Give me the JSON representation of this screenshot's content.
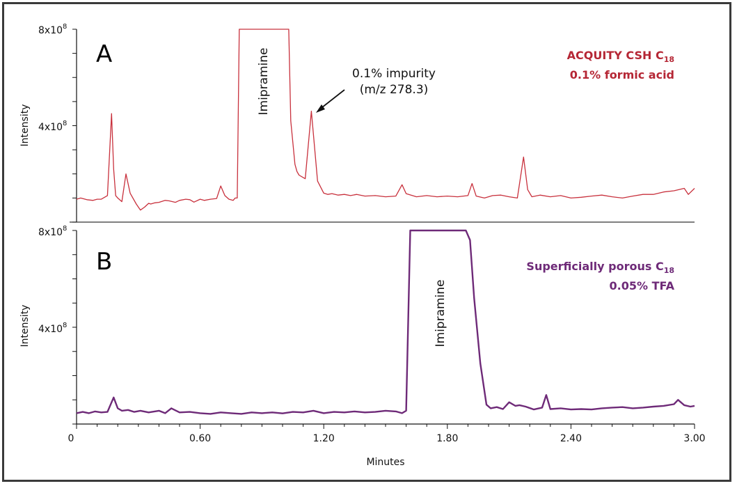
{
  "chart_data": [
    {
      "type": "line",
      "panel": "A",
      "title": "ACQUITY CSH C18, 0.1% formic acid",
      "legend": [
        "ACQUITY CSH C18",
        "0.1% formic acid"
      ],
      "xlabel": "Minutes",
      "ylabel": "Intensity",
      "xlim": [
        0,
        3.0
      ],
      "ylim": [
        0,
        800000000
      ],
      "y_ticks": [
        "4x10^8",
        "8x10^8"
      ],
      "annotations": [
        {
          "text": "Imipramine",
          "x": 0.9,
          "orientation": "vertical"
        },
        {
          "text": "0.1% impurity (m/z 278.3)",
          "x": 1.17,
          "y": 460000000,
          "arrow": true
        }
      ],
      "color": "#c8303c",
      "x": [
        0.0,
        0.02,
        0.05,
        0.08,
        0.1,
        0.12,
        0.15,
        0.17,
        0.18,
        0.19,
        0.2,
        0.22,
        0.24,
        0.26,
        0.29,
        0.31,
        0.33,
        0.35,
        0.36,
        0.38,
        0.4,
        0.43,
        0.45,
        0.48,
        0.5,
        0.53,
        0.55,
        0.57,
        0.6,
        0.62,
        0.65,
        0.68,
        0.7,
        0.72,
        0.74,
        0.76,
        0.77,
        0.78,
        0.79,
        0.79,
        1.03,
        1.04,
        1.06,
        1.07,
        1.08,
        1.11,
        1.14,
        1.17,
        1.2,
        1.22,
        1.24,
        1.27,
        1.3,
        1.33,
        1.36,
        1.4,
        1.45,
        1.5,
        1.55,
        1.58,
        1.6,
        1.65,
        1.7,
        1.75,
        1.8,
        1.85,
        1.9,
        1.92,
        1.94,
        1.98,
        2.02,
        2.06,
        2.1,
        2.14,
        2.17,
        2.19,
        2.21,
        2.25,
        2.3,
        2.35,
        2.4,
        2.45,
        2.5,
        2.55,
        2.6,
        2.65,
        2.7,
        2.75,
        2.8,
        2.85,
        2.9,
        2.95,
        2.97,
        3.0
      ],
      "values": [
        95000000,
        100000000,
        93000000,
        90000000,
        95000000,
        95000000,
        110000000,
        450000000,
        220000000,
        110000000,
        100000000,
        85000000,
        200000000,
        120000000,
        75000000,
        50000000,
        62000000,
        78000000,
        75000000,
        80000000,
        82000000,
        90000000,
        88000000,
        82000000,
        90000000,
        95000000,
        93000000,
        83000000,
        95000000,
        90000000,
        95000000,
        98000000,
        150000000,
        110000000,
        95000000,
        90000000,
        100000000,
        100000000,
        800000000,
        800000000,
        800000000,
        420000000,
        240000000,
        210000000,
        195000000,
        180000000,
        460000000,
        170000000,
        120000000,
        115000000,
        118000000,
        112000000,
        115000000,
        110000000,
        115000000,
        108000000,
        110000000,
        105000000,
        108000000,
        155000000,
        118000000,
        105000000,
        110000000,
        105000000,
        108000000,
        105000000,
        110000000,
        160000000,
        108000000,
        100000000,
        110000000,
        112000000,
        105000000,
        100000000,
        270000000,
        135000000,
        105000000,
        112000000,
        105000000,
        110000000,
        100000000,
        103000000,
        108000000,
        112000000,
        105000000,
        100000000,
        108000000,
        115000000,
        115000000,
        125000000,
        130000000,
        140000000,
        115000000,
        140000000
      ]
    },
    {
      "type": "line",
      "panel": "B",
      "title": "Superficially porous C18, 0.05% TFA",
      "legend": [
        "Superficially porous C18",
        "0.05% TFA"
      ],
      "xlabel": "Minutes",
      "ylabel": "Intensity",
      "xlim": [
        0,
        3.0
      ],
      "ylim": [
        0,
        800000000
      ],
      "x_ticks": [
        "0",
        "0.60",
        "1.20",
        "1.80",
        "2.40",
        "3.00"
      ],
      "y_ticks": [
        "4x10^8",
        "8x10^8"
      ],
      "annotations": [
        {
          "text": "Imipramine",
          "x": 1.8,
          "orientation": "vertical"
        }
      ],
      "color": "#6e2a78",
      "x": [
        0.0,
        0.03,
        0.06,
        0.09,
        0.12,
        0.15,
        0.18,
        0.2,
        0.22,
        0.25,
        0.28,
        0.31,
        0.35,
        0.4,
        0.43,
        0.46,
        0.5,
        0.55,
        0.6,
        0.65,
        0.7,
        0.75,
        0.8,
        0.85,
        0.9,
        0.95,
        1.0,
        1.05,
        1.1,
        1.15,
        1.2,
        1.25,
        1.3,
        1.35,
        1.4,
        1.45,
        1.5,
        1.55,
        1.58,
        1.6,
        1.62,
        1.63,
        1.89,
        1.91,
        1.93,
        1.96,
        1.99,
        2.01,
        2.04,
        2.07,
        2.1,
        2.13,
        2.15,
        2.18,
        2.22,
        2.26,
        2.28,
        2.3,
        2.35,
        2.4,
        2.45,
        2.5,
        2.55,
        2.6,
        2.65,
        2.7,
        2.75,
        2.8,
        2.85,
        2.9,
        2.92,
        2.95,
        2.98,
        3.0
      ],
      "values": [
        45000000,
        50000000,
        45000000,
        52000000,
        48000000,
        50000000,
        110000000,
        65000000,
        55000000,
        58000000,
        50000000,
        55000000,
        48000000,
        55000000,
        45000000,
        65000000,
        48000000,
        50000000,
        45000000,
        42000000,
        48000000,
        45000000,
        42000000,
        48000000,
        45000000,
        48000000,
        44000000,
        50000000,
        48000000,
        55000000,
        45000000,
        50000000,
        48000000,
        52000000,
        48000000,
        50000000,
        55000000,
        52000000,
        45000000,
        55000000,
        800000000,
        800000000,
        800000000,
        760000000,
        520000000,
        250000000,
        80000000,
        65000000,
        70000000,
        62000000,
        90000000,
        75000000,
        78000000,
        72000000,
        60000000,
        68000000,
        120000000,
        62000000,
        65000000,
        60000000,
        62000000,
        60000000,
        65000000,
        68000000,
        70000000,
        65000000,
        68000000,
        72000000,
        75000000,
        82000000,
        100000000,
        78000000,
        72000000,
        75000000
      ]
    }
  ],
  "panel_a": {
    "letter": "A",
    "y_top_label": "8x10",
    "y_mid_label": "4x10",
    "y_exp": "8",
    "ylabel": "Intensity",
    "legend_line1": "ACQUITY CSH C",
    "legend_line1_sub": "18",
    "legend_line2": "0.1% formic acid",
    "peak_label": "Imipramine",
    "annot_line1": "0.1% impurity",
    "annot_line2": "(m/z 278.3)"
  },
  "panel_b": {
    "letter": "B",
    "y_top_label": "8x10",
    "y_mid_label": "4x10",
    "y_exp": "8",
    "ylabel": "Intensity",
    "legend_line1": "Superficially porous C",
    "legend_line1_sub": "18",
    "legend_line2": "0.05% TFA",
    "peak_label": "Imipramine"
  },
  "x_axis": {
    "ticks": [
      "0",
      "0.60",
      "1.20",
      "1.80",
      "2.40",
      "3.00"
    ],
    "title": "Minutes"
  },
  "colors": {
    "series_a": "#c8303c",
    "series_b": "#6e2a78",
    "legend_a": "#b52735",
    "legend_b": "#6e2a78",
    "frame": "#3a3a3a"
  }
}
